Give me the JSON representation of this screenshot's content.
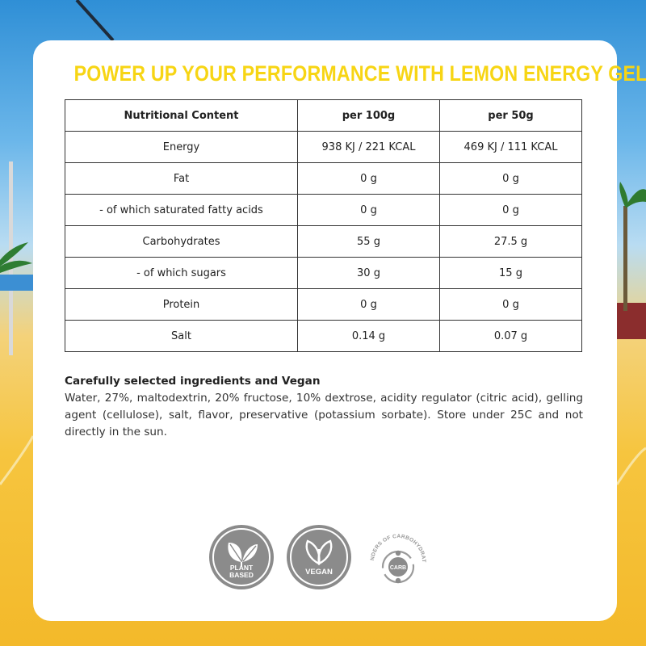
{
  "title": "POWER UP YOUR PERFORMANCE WITH LEMON ENERGY GEL",
  "table": {
    "headers": [
      "Nutritional Content",
      "per 100g",
      "per 50g"
    ],
    "rows": [
      [
        "Energy",
        "938 KJ / 221 KCAL",
        "469 KJ / 111 KCAL"
      ],
      [
        "Fat",
        "0 g",
        "0 g"
      ],
      [
        "- of which saturated fatty acids",
        "0 g",
        "0 g"
      ],
      [
        "Carbohydrates",
        "55 g",
        "27.5 g"
      ],
      [
        "- of which sugars",
        "30 g",
        "15 g"
      ],
      [
        "Protein",
        "0 g",
        "0 g"
      ],
      [
        "Salt",
        "0.14 g",
        "0.07 g"
      ]
    ]
  },
  "ingredients": {
    "heading": "Carefully selected ingredients and Vegan",
    "text": "Water, 27%, maltodextrin, 20% fructose, 10% dextrose, acidity regulator (citric acid), gelling agent (cellulose), salt, flavor, preservative (potassium sorbate). Store under 25C and not directly in the sun."
  },
  "badges": {
    "plant_based": {
      "line1": "PLANT",
      "line2": "BASED",
      "icon": "leaf-icon"
    },
    "vegan": {
      "label": "VEGAN",
      "icon": "vegan-leaf-icon"
    },
    "carb": {
      "arc_text": "WONDERS OF CARBOHYDRATES",
      "center": "CARB",
      "icon": "carb-cycle-icon"
    }
  },
  "colors": {
    "title": "#f7d514",
    "badge_gray": "#8b8b8b",
    "table_border": "#333333"
  }
}
